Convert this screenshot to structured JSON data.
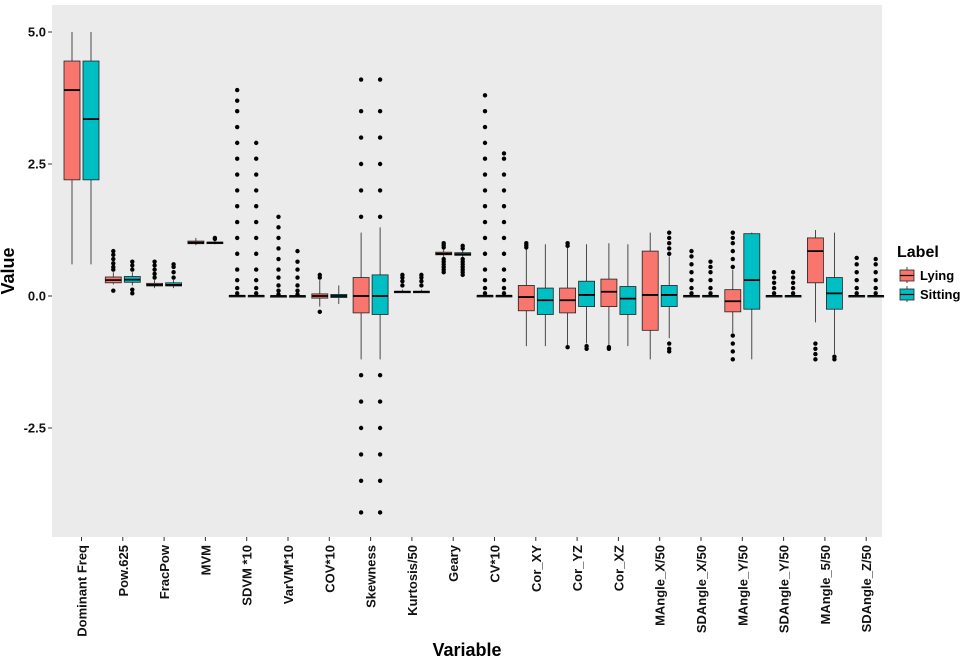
{
  "chart_data": {
    "type": "box",
    "title": "",
    "xlabel": "Variable",
    "ylabel": "Value",
    "ylim": [
      -4.5,
      5.2
    ],
    "yticks": [
      -2.5,
      0.0,
      2.5,
      5.0
    ],
    "ytick_labels": [
      "-2.5",
      "0.0",
      "2.5",
      "5.0"
    ],
    "grid": false,
    "legend": {
      "title": "Label",
      "position": "right"
    },
    "series": [
      {
        "name": "Lying",
        "color": "#F8766D"
      },
      {
        "name": "Sitting",
        "color": "#00BFC4"
      }
    ],
    "categories": [
      "Dominant Freq",
      "Pow.625",
      "FracPow",
      "MVM",
      "SDVM *10",
      "VarVM*10",
      "COV*10",
      "Skewness",
      "Kurtosis/50",
      "Geary",
      "CV*10",
      "Cor_XY",
      "Cor_YZ",
      "Cor_XZ",
      "MAngle_X/50",
      "SDAngle_X/50",
      "MAngle_Y/50",
      "SDAngle_Y/50",
      "MAngle_5/50",
      "SDAngle_Z/50"
    ],
    "boxes": [
      {
        "category": "Dominant Freq",
        "series": "Lying",
        "lower_whisker": 0.6,
        "q1": 2.2,
        "median": 3.9,
        "q3": 4.45,
        "upper_whisker": 5.0,
        "outliers": []
      },
      {
        "category": "Dominant Freq",
        "series": "Sitting",
        "lower_whisker": 0.6,
        "q1": 2.2,
        "median": 3.35,
        "q3": 4.45,
        "upper_whisker": 5.0,
        "outliers": []
      },
      {
        "category": "Pow.625",
        "series": "Lying",
        "lower_whisker": 0.22,
        "q1": 0.25,
        "median": 0.3,
        "q3": 0.36,
        "upper_whisker": 0.45,
        "outliers": [
          0.5,
          0.55,
          0.62,
          0.7,
          0.78,
          0.85,
          0.1
        ]
      },
      {
        "category": "Pow.625",
        "series": "Sitting",
        "lower_whisker": 0.2,
        "q1": 0.26,
        "median": 0.31,
        "q3": 0.37,
        "upper_whisker": 0.45,
        "outliers": [
          0.5,
          0.58,
          0.65,
          0.05,
          0.12
        ]
      },
      {
        "category": "FracPow",
        "series": "Lying",
        "lower_whisker": 0.15,
        "q1": 0.19,
        "median": 0.21,
        "q3": 0.24,
        "upper_whisker": 0.3,
        "outliers": [
          0.35,
          0.42,
          0.5,
          0.58,
          0.65
        ]
      },
      {
        "category": "FracPow",
        "series": "Sitting",
        "lower_whisker": 0.15,
        "q1": 0.19,
        "median": 0.21,
        "q3": 0.25,
        "upper_whisker": 0.3,
        "outliers": [
          0.35,
          0.45,
          0.55,
          0.6
        ]
      },
      {
        "category": "MVM",
        "series": "Lying",
        "lower_whisker": 0.96,
        "q1": 0.99,
        "median": 1.01,
        "q3": 1.04,
        "upper_whisker": 1.1,
        "outliers": []
      },
      {
        "category": "MVM",
        "series": "Sitting",
        "lower_whisker": 0.98,
        "q1": 1.0,
        "median": 1.01,
        "q3": 1.02,
        "upper_whisker": 1.06,
        "outliers": [
          1.08,
          1.1
        ]
      },
      {
        "category": "SDVM *10",
        "series": "Lying",
        "lower_whisker": 0.0,
        "q1": 0.0,
        "median": 0.005,
        "q3": 0.01,
        "upper_whisker": 0.02,
        "outliers": [
          0.05,
          0.15,
          0.3,
          0.5,
          0.8,
          1.1,
          1.4,
          1.7,
          2.0,
          2.3,
          2.6,
          2.9,
          3.2,
          3.5,
          3.7,
          3.9
        ]
      },
      {
        "category": "SDVM *10",
        "series": "Sitting",
        "lower_whisker": 0.0,
        "q1": 0.0,
        "median": 0.005,
        "q3": 0.01,
        "upper_whisker": 0.02,
        "outliers": [
          0.05,
          0.15,
          0.3,
          0.5,
          0.8,
          1.1,
          1.4,
          1.7,
          2.0,
          2.3,
          2.6,
          2.9
        ]
      },
      {
        "category": "VarVM*10",
        "series": "Lying",
        "lower_whisker": 0.0,
        "q1": 0.0,
        "median": 0.0,
        "q3": 0.005,
        "upper_whisker": 0.01,
        "outliers": [
          0.03,
          0.1,
          0.2,
          0.35,
          0.5,
          0.7,
          0.9,
          1.1,
          1.3,
          1.5
        ]
      },
      {
        "category": "VarVM*10",
        "series": "Sitting",
        "lower_whisker": 0.0,
        "q1": 0.0,
        "median": 0.0,
        "q3": 0.005,
        "upper_whisker": 0.01,
        "outliers": [
          0.03,
          0.1,
          0.2,
          0.35,
          0.5,
          0.65,
          0.85
        ]
      },
      {
        "category": "COV*10",
        "series": "Lying",
        "lower_whisker": -0.2,
        "q1": -0.04,
        "median": 0.0,
        "q3": 0.04,
        "upper_whisker": 0.3,
        "outliers": [
          0.35,
          0.4,
          -0.3
        ]
      },
      {
        "category": "COV*10",
        "series": "Sitting",
        "lower_whisker": -0.15,
        "q1": -0.03,
        "median": 0.0,
        "q3": 0.03,
        "upper_whisker": 0.2,
        "outliers": []
      },
      {
        "category": "Skewness",
        "series": "Lying",
        "lower_whisker": -1.2,
        "q1": -0.32,
        "median": 0.0,
        "q3": 0.35,
        "upper_whisker": 1.2,
        "outliers": [
          1.5,
          2.0,
          2.5,
          3.0,
          3.5,
          4.1,
          -1.5,
          -2.0,
          -2.5,
          -3.0,
          -3.5,
          -4.1
        ]
      },
      {
        "category": "Skewness",
        "series": "Sitting",
        "lower_whisker": -1.2,
        "q1": -0.35,
        "median": 0.0,
        "q3": 0.4,
        "upper_whisker": 1.3,
        "outliers": [
          1.5,
          2.0,
          2.5,
          3.0,
          3.5,
          4.1,
          -1.5,
          -2.0,
          -2.5,
          -3.0,
          -3.5,
          -4.1
        ]
      },
      {
        "category": "Kurtosis/50",
        "series": "Lying",
        "lower_whisker": 0.06,
        "q1": 0.07,
        "median": 0.08,
        "q3": 0.09,
        "upper_whisker": 0.12,
        "outliers": [
          0.2,
          0.28,
          0.35,
          0.4
        ]
      },
      {
        "category": "Kurtosis/50",
        "series": "Sitting",
        "lower_whisker": 0.06,
        "q1": 0.07,
        "median": 0.08,
        "q3": 0.09,
        "upper_whisker": 0.12,
        "outliers": [
          0.2,
          0.28,
          0.35,
          0.4
        ]
      },
      {
        "category": "Geary",
        "series": "Lying",
        "lower_whisker": 0.74,
        "q1": 0.78,
        "median": 0.8,
        "q3": 0.83,
        "upper_whisker": 0.88,
        "outliers": [
          0.45,
          0.5,
          0.55,
          0.6,
          0.65,
          0.7,
          0.92,
          0.96,
          1.0
        ]
      },
      {
        "category": "Geary",
        "series": "Sitting",
        "lower_whisker": 0.74,
        "q1": 0.77,
        "median": 0.79,
        "q3": 0.82,
        "upper_whisker": 0.86,
        "outliers": [
          0.4,
          0.45,
          0.5,
          0.55,
          0.6,
          0.65,
          0.7,
          0.9,
          0.95
        ]
      },
      {
        "category": "CV*10",
        "series": "Lying",
        "lower_whisker": 0.0,
        "q1": 0.0,
        "median": 0.005,
        "q3": 0.01,
        "upper_whisker": 0.02,
        "outliers": [
          0.05,
          0.15,
          0.3,
          0.5,
          0.8,
          1.1,
          1.4,
          1.7,
          2.0,
          2.3,
          2.6,
          2.9,
          3.2,
          3.5,
          3.8
        ]
      },
      {
        "category": "CV*10",
        "series": "Sitting",
        "lower_whisker": 0.0,
        "q1": 0.0,
        "median": 0.005,
        "q3": 0.01,
        "upper_whisker": 0.02,
        "outliers": [
          0.05,
          0.15,
          0.3,
          0.5,
          0.8,
          1.1,
          1.4,
          1.7,
          2.0,
          2.3,
          2.6,
          2.7
        ]
      },
      {
        "category": "Cor_XY",
        "series": "Lying",
        "lower_whisker": -0.95,
        "q1": -0.28,
        "median": -0.02,
        "q3": 0.2,
        "upper_whisker": 0.9,
        "outliers": [
          0.92,
          0.96,
          1.0
        ]
      },
      {
        "category": "Cor_XY",
        "series": "Sitting",
        "lower_whisker": -0.95,
        "q1": -0.35,
        "median": -0.08,
        "q3": 0.15,
        "upper_whisker": 0.98,
        "outliers": []
      },
      {
        "category": "Cor_YZ",
        "series": "Lying",
        "lower_whisker": -0.95,
        "q1": -0.32,
        "median": -0.08,
        "q3": 0.15,
        "upper_whisker": 0.92,
        "outliers": [
          0.95,
          1.0,
          -0.97
        ]
      },
      {
        "category": "Cor_YZ",
        "series": "Sitting",
        "lower_whisker": -0.9,
        "q1": -0.2,
        "median": 0.02,
        "q3": 0.28,
        "upper_whisker": 0.98,
        "outliers": [
          -0.95,
          -1.0
        ]
      },
      {
        "category": "Cor_XZ",
        "series": "Lying",
        "lower_whisker": -0.95,
        "q1": -0.2,
        "median": 0.08,
        "q3": 0.32,
        "upper_whisker": 1.0,
        "outliers": [
          -0.97,
          -1.0
        ]
      },
      {
        "category": "Cor_XZ",
        "series": "Sitting",
        "lower_whisker": -0.95,
        "q1": -0.35,
        "median": -0.05,
        "q3": 0.18,
        "upper_whisker": 0.98,
        "outliers": []
      },
      {
        "category": "MAngle_X/50",
        "series": "Lying",
        "lower_whisker": -1.2,
        "q1": -0.65,
        "median": 0.02,
        "q3": 0.85,
        "upper_whisker": 1.2,
        "outliers": []
      },
      {
        "category": "MAngle_X/50",
        "series": "Sitting",
        "lower_whisker": -0.8,
        "q1": -0.2,
        "median": 0.02,
        "q3": 0.2,
        "upper_whisker": 0.75,
        "outliers": [
          0.8,
          0.9,
          1.0,
          1.1,
          1.2,
          -0.9,
          -1.0,
          -1.05
        ]
      },
      {
        "category": "SDAngle_X/50",
        "series": "Lying",
        "lower_whisker": 0.0,
        "q1": 0.0,
        "median": 0.003,
        "q3": 0.008,
        "upper_whisker": 0.02,
        "outliers": [
          0.05,
          0.15,
          0.3,
          0.45,
          0.6,
          0.75,
          0.85
        ]
      },
      {
        "category": "SDAngle_X/50",
        "series": "Sitting",
        "lower_whisker": 0.0,
        "q1": 0.0,
        "median": 0.003,
        "q3": 0.008,
        "upper_whisker": 0.02,
        "outliers": [
          0.05,
          0.15,
          0.3,
          0.45,
          0.55,
          0.65
        ]
      },
      {
        "category": "MAngle_Y/50",
        "series": "Lying",
        "lower_whisker": -0.7,
        "q1": -0.3,
        "median": -0.1,
        "q3": 0.12,
        "upper_whisker": 0.5,
        "outliers": [
          0.55,
          0.7,
          0.85,
          1.0,
          1.1,
          1.2,
          -0.75,
          -0.9,
          -1.05,
          -1.2
        ]
      },
      {
        "category": "MAngle_Y/50",
        "series": "Sitting",
        "lower_whisker": -1.2,
        "q1": -0.25,
        "median": 0.3,
        "q3": 1.18,
        "upper_whisker": 1.2,
        "outliers": []
      },
      {
        "category": "SDAngle_Y/50",
        "series": "Lying",
        "lower_whisker": 0.0,
        "q1": 0.0,
        "median": 0.003,
        "q3": 0.008,
        "upper_whisker": 0.02,
        "outliers": [
          0.05,
          0.15,
          0.25,
          0.35,
          0.45
        ]
      },
      {
        "category": "SDAngle_Y/50",
        "series": "Sitting",
        "lower_whisker": 0.0,
        "q1": 0.0,
        "median": 0.003,
        "q3": 0.008,
        "upper_whisker": 0.02,
        "outliers": [
          0.05,
          0.15,
          0.25,
          0.35,
          0.45
        ]
      },
      {
        "category": "MAngle_5/50",
        "series": "Lying",
        "lower_whisker": -0.5,
        "q1": 0.25,
        "median": 0.85,
        "q3": 1.1,
        "upper_whisker": 1.25,
        "outliers": [
          -0.9,
          -1.0,
          -1.1,
          -1.2
        ]
      },
      {
        "category": "MAngle_5/50",
        "series": "Sitting",
        "lower_whisker": -1.1,
        "q1": -0.25,
        "median": 0.05,
        "q3": 0.35,
        "upper_whisker": 1.2,
        "outliers": [
          -1.15,
          -1.2
        ]
      },
      {
        "category": "SDAngle_Z/50",
        "series": "Lying",
        "lower_whisker": 0.0,
        "q1": 0.0,
        "median": 0.003,
        "q3": 0.008,
        "upper_whisker": 0.02,
        "outliers": [
          0.05,
          0.15,
          0.3,
          0.45,
          0.6,
          0.72
        ]
      },
      {
        "category": "SDAngle_Z/50",
        "series": "Sitting",
        "lower_whisker": 0.0,
        "q1": 0.0,
        "median": 0.003,
        "q3": 0.008,
        "upper_whisker": 0.02,
        "outliers": [
          0.05,
          0.15,
          0.3,
          0.45,
          0.6,
          0.7
        ]
      }
    ]
  }
}
